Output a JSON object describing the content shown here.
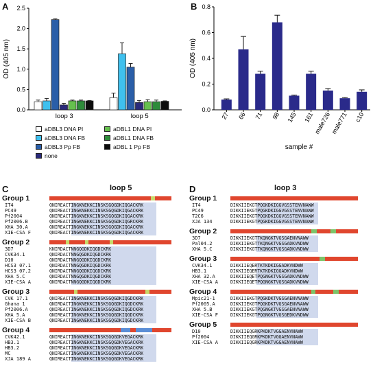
{
  "panels": {
    "A": "A",
    "B": "B",
    "C": "C",
    "D": "D"
  },
  "chart_data": [
    {
      "type": "bar",
      "panel": "A",
      "ylabel": "OD (405 nm)",
      "ylim": [
        0,
        2.5
      ],
      "yticks": [
        "0.0",
        "0.5",
        "1.0",
        "1.5",
        "2.0",
        "2.5"
      ],
      "categories": [
        "loop 3",
        "loop 5"
      ],
      "series": [
        {
          "name": "aDBL3 DNA PI",
          "color": "#ffffff",
          "values": [
            0.2,
            0.3
          ]
        },
        {
          "name": "aDBL3 DNA FB",
          "color": "#3fc0ee",
          "values": [
            0.22,
            1.38
          ]
        },
        {
          "name": "aDBL3 Pp FB",
          "color": "#2a5ea8",
          "values": [
            2.22,
            1.05
          ]
        },
        {
          "name": "none",
          "color": "#2a2a7a",
          "values": [
            0.12,
            0.18
          ]
        },
        {
          "name": "aDBL1 DNA PI",
          "color": "#66c04e",
          "values": [
            0.22,
            0.2
          ]
        },
        {
          "name": "aDBL1 DNA FB",
          "color": "#2e8b3a",
          "values": [
            0.22,
            0.2
          ]
        },
        {
          "name": "aDBL 1 Pp FB",
          "color": "#0c0c0c",
          "values": [
            0.22,
            0.21
          ]
        }
      ],
      "errors": [
        [
          0.04,
          0.11
        ],
        [
          0.06,
          0.27
        ],
        [
          0.02,
          0.09
        ],
        [
          0.04,
          0.05
        ],
        [
          0.02,
          0.05
        ],
        [
          0.02,
          0.04
        ],
        [
          0.01,
          0.01
        ]
      ]
    },
    {
      "type": "bar",
      "panel": "B",
      "ylabel": "OD (405 nm)",
      "xlabel": "sample #",
      "ylim": [
        0,
        0.8
      ],
      "yticks": [
        "0.0",
        "0.2",
        "0.4",
        "0.6",
        "0.8"
      ],
      "categories": [
        "27",
        "66",
        "71",
        "98",
        "145",
        "161",
        "male726",
        "male771",
        "c10"
      ],
      "values": [
        0.08,
        0.47,
        0.28,
        0.68,
        0.11,
        0.28,
        0.15,
        0.09,
        0.14
      ],
      "errors": [
        0.005,
        0.1,
        0.02,
        0.055,
        0.005,
        0.02,
        0.015,
        0.005,
        0.015
      ],
      "color": "#2a2a8a"
    }
  ],
  "panelC": {
    "title": "loop 5",
    "groups": [
      {
        "title": "Group 1",
        "rows": [
          {
            "name": "IT4",
            "seq": "QNIREACTINGKNEKKCINSKSGQGDKIQGACKRK"
          },
          {
            "name": "PC49",
            "seq": "QNIREACTINGKNEKKCINSKSGQGDKIQGACKRK"
          },
          {
            "name": "Pf2004",
            "seq": "QNIREACTINGKNEKKCINSKSGQGDKIQGACKRK"
          },
          {
            "name": "Pf2006.B",
            "seq": "QNIREACTINGKNEKKCINSKSGQGDKIQGRCKRK"
          },
          {
            "name": "XHA 30.A",
            "seq": "QNIREACTINGKNEKKCINSKSGQGDKIQGACKRK"
          },
          {
            "name": "XIE-CSA F",
            "seq": "QNIREACTINGKNEKKCINSKSGQGDKIQGACKRK"
          }
        ]
      },
      {
        "title": "Group 2",
        "rows": [
          {
            "name": "3D7",
            "seq": "KNIRDACTNNGQGDKIQGDCKRK"
          },
          {
            "name": "CVK34.1",
            "seq": "QNIRDACTNNGQGDKIQGDCKRK"
          },
          {
            "name": "D10",
            "seq": "QNIRDACTNNGQGDKIQGDCKRK"
          },
          {
            "name": "HCS3 07.1",
            "seq": "QNIRDACTNNGQGDKIQGDCKRK"
          },
          {
            "name": "HCS3 07.2",
            "seq": "QNIRDACTNNGQGDKIQGDCKRK"
          },
          {
            "name": "XHA 5.C",
            "seq": "QNIRDACTNNGQGDKIQGDCKRK"
          },
          {
            "name": "XIE-CSA A",
            "seq": "QNIRDACTNNGQGDKIQGDCKRK"
          }
        ]
      },
      {
        "title": "Group 3",
        "rows": [
          {
            "name": "CVK 17.1",
            "seq": "QNIREACTINGKNEKKCINSKSGQGDKIQGDCKRK"
          },
          {
            "name": "Ghana 1",
            "seq": "QNIRDACTINGKNEKKCINSKSGQGDKIQGDCKRK"
          },
          {
            "name": "Pf2006.A",
            "seq": "QNIREACTINGKNEKKCINSKSGQGDKIQGDCKRK"
          },
          {
            "name": "XHA 5.A",
            "seq": "QNIREACTINGKNEKKCINSKSGQGDKIQGDCKRK"
          },
          {
            "name": "XIE-CSA B",
            "seq": "QNIREACTINGKNEKKCINSKSGQGDKIQGDCKRK"
          }
        ]
      },
      {
        "title": "Group 4",
        "rows": [
          {
            "name": "CVK42.1",
            "seq": "QNIREACTINGKNEKKCINSKSGQGDKVEGACKRK"
          },
          {
            "name": "HB3.1",
            "seq": "QNIREACTINGKNEKKCINSKSGQGDKVEGACKRK"
          },
          {
            "name": "HB3.2",
            "seq": "QNIREACTINGKNEKKCINSKSGQGDKVEGACKRK"
          },
          {
            "name": "MC",
            "seq": "QNIREACTINGKNEKKCINSKSGQGDKVEGACKRK"
          },
          {
            "name": "XJA 189 A",
            "seq": "QNIREACTINGKNEKKCINSKSGQGDKVEGACKRK"
          }
        ]
      }
    ]
  },
  "panelD": {
    "title": "loop 3",
    "groups": [
      {
        "title": "Group 1",
        "rows": [
          {
            "name": "IT4",
            "seq": "DIKKIIEKGTPQGKDKIGGVGSSTENVNAWW"
          },
          {
            "name": "PC49",
            "seq": "DIKKIIEKGTPQGKDKIGGVGSSTENVNAWW"
          },
          {
            "name": "T2C6",
            "seq": "DIKKIIEKGTPQGKDKIGGVGSSTENVNAWW"
          },
          {
            "name": "XJA 134",
            "seq": "DIKKIIEKGTPQGKDKIGGVGSSTENVNAWW"
          }
        ]
      },
      {
        "title": "Group 2",
        "rows": [
          {
            "name": "3D7",
            "seq": "DIKKIIEKGTTKQNGKTVGSGAENVNAWW"
          },
          {
            "name": "Pal04.2",
            "seq": "DIKKIIEKGTTKQNGKTVGSGADKVNDWW"
          },
          {
            "name": "XHA 5.C",
            "seq": "DIKKIIEKGTTKQNGKTVGSGADKVNDWW"
          }
        ]
      },
      {
        "title": "Group 3",
        "rows": [
          {
            "name": "CVK34.1",
            "seq": "DIKKIIEQERTKTKDKIGGADKVNDWW"
          },
          {
            "name": "HB3.1",
            "seq": "DIKKIIEQERTKTKDKIGGADKVNDWW"
          },
          {
            "name": "XHA 32.A",
            "seq": "DIKKIIEQETPQGNGKTVGSGADKVNDWW"
          },
          {
            "name": "XIE-CSA A",
            "seq": "DIKKIIEQETPQGNGKTVGSGADKVNDWW"
          }
        ]
      },
      {
        "title": "Group 4",
        "rows": [
          {
            "name": "Mpic21-1",
            "seq": "DIKKIIEKGTPQGKDKTVGSGAENVNAWW"
          },
          {
            "name": "Pf2005.A",
            "seq": "DIKKIIEKGTPQGKDKTVGSGAENVNAWW"
          },
          {
            "name": "XHA 5.B",
            "seq": "DIKKIIEKGTPQGNGKTVGSGAENVNAWW"
          },
          {
            "name": "XIE-CSA F",
            "seq": "DIKKIIEKGTPQGNGKTVGSGEDKVNDWW"
          }
        ]
      },
      {
        "title": "Group 5",
        "rows": [
          {
            "name": "D10",
            "seq": "DIKKIIEQGRKPKDKTVGGAENVNAWW"
          },
          {
            "name": "Pf2004",
            "seq": "DIKKIIEQGRKPKDKTVGGAENVNAWW"
          },
          {
            "name": "XIE-CSA A",
            "seq": "DIKKIIEQGRKPKDKTVGGAENVNAWW"
          }
        ]
      }
    ]
  }
}
